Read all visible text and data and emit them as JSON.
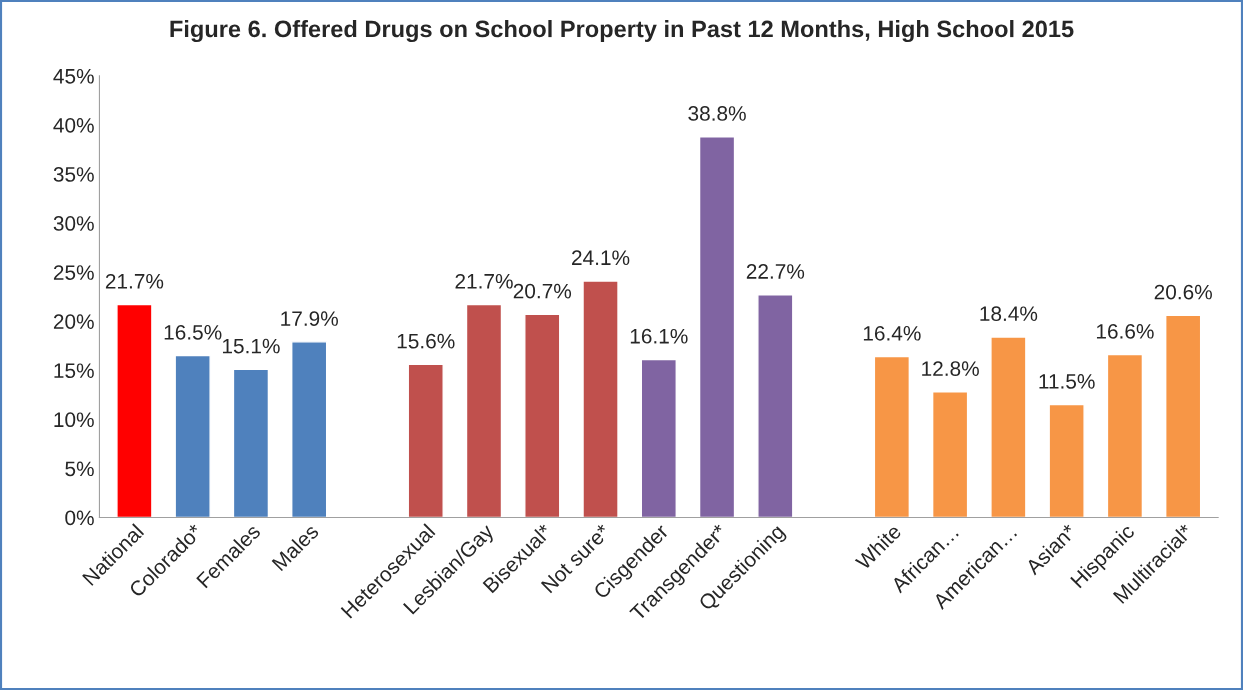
{
  "chart_data": {
    "type": "bar",
    "title": "Figure 6. Offered Drugs on School Property in Past 12 Months, High School 2015",
    "categories": [
      "National",
      "Colorado*",
      "Females",
      "Males",
      null,
      "Heterosexual",
      "Lesbian/Gay",
      "Bisexual*",
      "Not sure*",
      "Cisgender",
      "Transgender*",
      "Questioning",
      null,
      "White",
      "African…",
      "American…",
      "Asian*",
      "Hispanic",
      "Multiracial*"
    ],
    "values": [
      21.7,
      16.5,
      15.1,
      17.9,
      null,
      15.6,
      21.7,
      20.7,
      24.1,
      16.1,
      38.8,
      22.7,
      null,
      16.4,
      12.8,
      18.4,
      11.5,
      16.6,
      20.6
    ],
    "colors": [
      "#ff0000",
      "#4f81bd",
      "#4f81bd",
      "#4f81bd",
      null,
      "#c0504d",
      "#c0504d",
      "#c0504d",
      "#c0504d",
      "#8064a2",
      "#8064a2",
      "#8064a2",
      null,
      "#f79646",
      "#f79646",
      "#f79646",
      "#f79646",
      "#f79646",
      "#f79646"
    ],
    "value_labels": [
      "21.7%",
      "16.5%",
      "15.1%",
      "17.9%",
      null,
      "15.6%",
      "21.7%",
      "20.7%",
      "24.1%",
      "16.1%",
      "38.8%",
      "22.7%",
      null,
      "16.4%",
      "12.8%",
      "18.4%",
      "11.5%",
      "16.6%",
      "20.6%"
    ],
    "ylim": [
      0,
      45
    ],
    "yticks": [
      {
        "value": 0,
        "label": "0%"
      },
      {
        "value": 5,
        "label": "5%"
      },
      {
        "value": 10,
        "label": "10%"
      },
      {
        "value": 15,
        "label": "15%"
      },
      {
        "value": 20,
        "label": "20%"
      },
      {
        "value": 25,
        "label": "25%"
      },
      {
        "value": 30,
        "label": "30%"
      },
      {
        "value": 35,
        "label": "35%"
      },
      {
        "value": 40,
        "label": "40%"
      },
      {
        "value": 45,
        "label": "45%"
      }
    ],
    "grid": false,
    "legend": false
  }
}
